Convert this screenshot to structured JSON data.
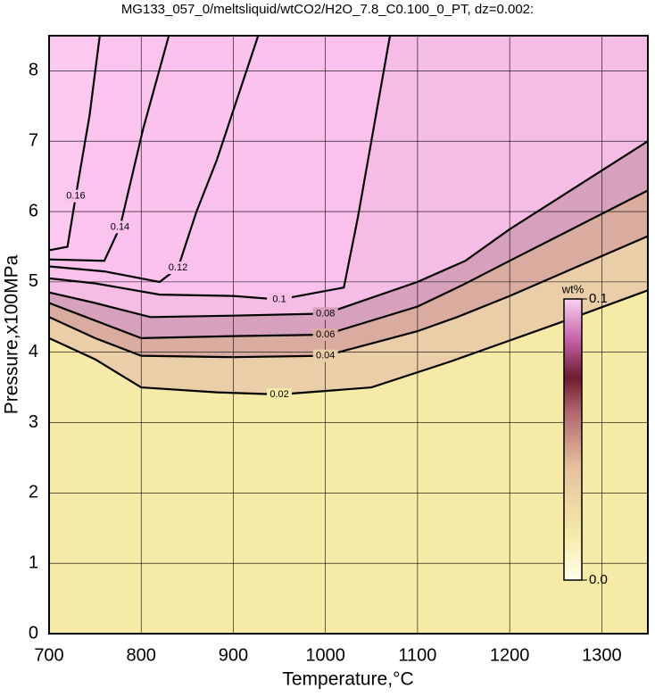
{
  "chart_data": {
    "type": "contour",
    "title": "MG133_057_0/meltsliquid/wtCO2/H2O_7.8_C0.100_0_PT, dz=0.002:",
    "xlabel": "Temperature,°C",
    "ylabel": "Pressure,x100MPa",
    "xlim": [
      700,
      1350
    ],
    "xticks": [
      700,
      800,
      900,
      1000,
      1100,
      1200,
      1300
    ],
    "ylim": [
      0,
      8.5
    ],
    "yticks": [
      0,
      1,
      2,
      3,
      4,
      5,
      6,
      7,
      8
    ],
    "grid": true,
    "background": "#fbc8f0",
    "contours": [
      {
        "level": 0.16,
        "color": "#fbc4ee",
        "x": [
          700,
          720,
          729,
          744,
          755
        ],
        "y": [
          5.45,
          5.5,
          6.22,
          7.37,
          8.5
        ]
      },
      {
        "level": 0.14,
        "color": "#fac2ec",
        "x": [
          700,
          760,
          777,
          802,
          830
        ],
        "y": [
          5.32,
          5.3,
          5.78,
          7.17,
          8.5
        ]
      },
      {
        "level": 0.12,
        "color": "#f9c1eb",
        "x": [
          700,
          760,
          820,
          840,
          860,
          882,
          927
        ],
        "y": [
          5.22,
          5.15,
          5.0,
          5.2,
          6.0,
          6.73,
          8.5
        ]
      },
      {
        "level": 0.1,
        "color": "#f5bce6",
        "x": [
          700,
          750,
          820,
          900,
          950,
          1020,
          1035,
          1070
        ],
        "y": [
          5.05,
          4.98,
          4.82,
          4.8,
          4.75,
          4.92,
          5.9,
          8.5
        ]
      },
      {
        "level": 0.08,
        "color": "#d7a0bc",
        "x": [
          700,
          750,
          810,
          900,
          1000,
          1100,
          1152,
          1200,
          1350
        ],
        "y": [
          4.85,
          4.7,
          4.5,
          4.52,
          4.55,
          5.0,
          5.3,
          5.75,
          7.0
        ]
      },
      {
        "level": 0.06,
        "color": "#d9ac9f",
        "x": [
          700,
          750,
          800,
          900,
          1000,
          1100,
          1148,
          1200,
          1350
        ],
        "y": [
          4.7,
          4.45,
          4.2,
          4.23,
          4.25,
          4.65,
          4.95,
          5.3,
          6.3
        ]
      },
      {
        "level": 0.04,
        "color": "#e9cea7",
        "x": [
          700,
          750,
          800,
          900,
          1000,
          1100,
          1143,
          1200,
          1350
        ],
        "y": [
          4.5,
          4.2,
          3.95,
          3.93,
          3.95,
          4.3,
          4.5,
          4.8,
          5.65
        ]
      },
      {
        "level": 0.02,
        "color": "#f5eaa6",
        "x": [
          700,
          750,
          800,
          882,
          950,
          1050,
          1136,
          1250,
          1350
        ],
        "y": [
          4.2,
          3.9,
          3.5,
          3.43,
          3.4,
          3.5,
          3.87,
          4.4,
          4.88
        ]
      }
    ],
    "colorbar": {
      "label": "wt%",
      "lim": [
        0,
        0.1
      ],
      "ticks": [
        {
          "value": 0,
          "label": "0.0"
        },
        0.1
      ]
    }
  }
}
